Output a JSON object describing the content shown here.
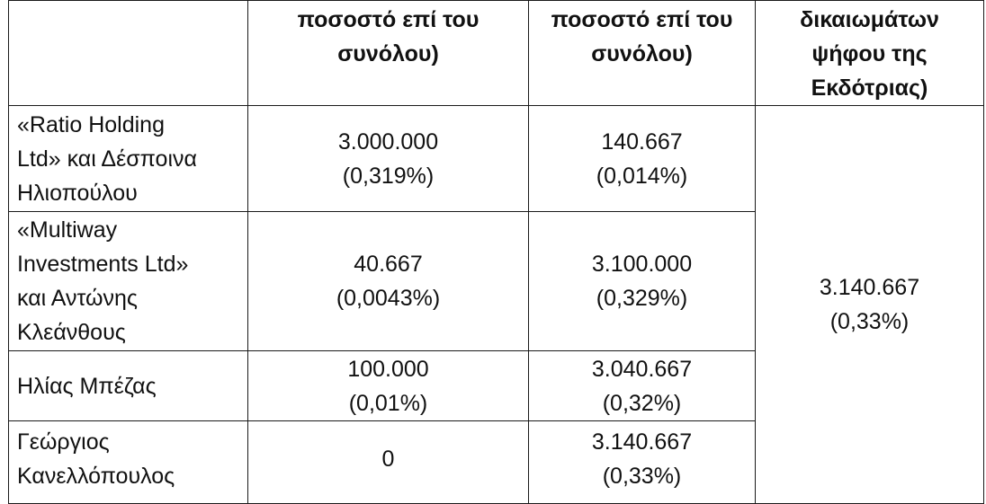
{
  "header": {
    "col1": [
      ""
    ],
    "col2": [
      "ποσοστό επί του",
      "συνόλου)"
    ],
    "col3": [
      "ποσοστό επί του",
      "συνόλου)"
    ],
    "col4": [
      "δικαιωμάτων",
      "ψήφου της",
      "Εκδότριας)"
    ]
  },
  "rows": [
    {
      "name": [
        "«Ratio Holding",
        "Ltd» και Δέσποινα",
        "Ηλιοπούλου"
      ],
      "value1": [
        "3.000.000",
        "(0,319%)"
      ],
      "value2": [
        "140.667",
        "(0,014%)"
      ]
    },
    {
      "name": [
        "«Multiway",
        "Investments Ltd»",
        "και Αντώνης",
        "Κλεάνθους"
      ],
      "value1": [
        "40.667",
        "(0,0043%)"
      ],
      "value2": [
        "3.100.000",
        "(0,329%)"
      ]
    },
    {
      "name": [
        "Ηλίας Μπέζας"
      ],
      "value1": [
        "100.000",
        "(0,01%)"
      ],
      "value2": [
        "3.040.667",
        "(0,32%)"
      ]
    },
    {
      "name": [
        "Γεώργιος",
        "Κανελλόπουλος"
      ],
      "value1": [
        "0"
      ],
      "value2": [
        "3.140.667",
        "(0,33%)"
      ]
    }
  ],
  "total": [
    "3.140.667",
    "(0,33%)"
  ]
}
